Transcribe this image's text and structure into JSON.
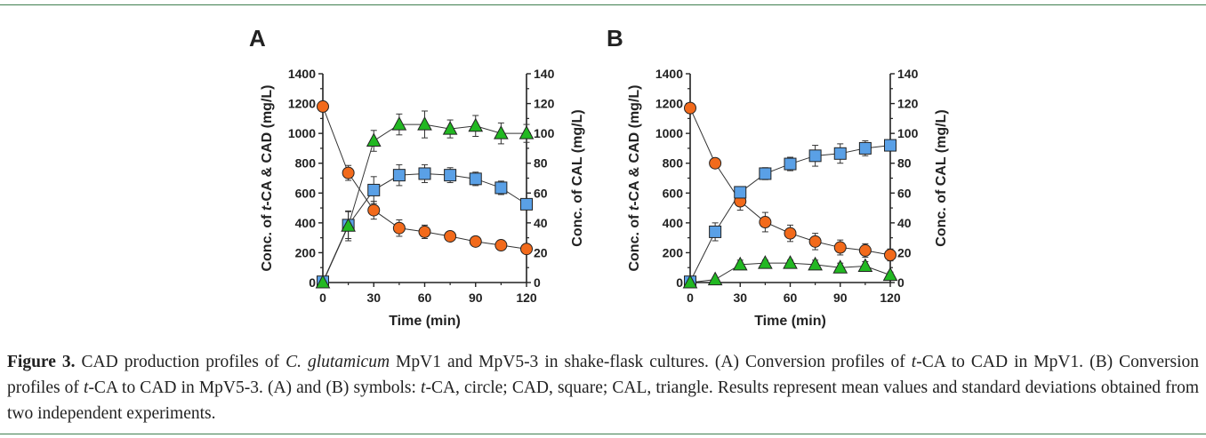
{
  "chart_data": [
    {
      "type": "line",
      "panel": "A",
      "xlabel": "Time (min)",
      "ylabel_parts": [
        "Conc. of ",
        "t",
        "-CA & CAD (mg/L)"
      ],
      "y2label": "Conc. of CAL (mg/L)",
      "xlim": [
        0,
        120
      ],
      "ylim": [
        0,
        1400
      ],
      "y2lim": [
        0,
        140
      ],
      "xticks": [
        "0",
        "30",
        "60",
        "90",
        "120"
      ],
      "yticks": [
        "0",
        "200",
        "400",
        "600",
        "800",
        "1000",
        "1200",
        "1400"
      ],
      "y2ticks": [
        "0",
        "20",
        "40",
        "60",
        "80",
        "100",
        "120",
        "140"
      ],
      "series": [
        {
          "marker": "circle",
          "axis": "left",
          "color": "#f26a1b",
          "x": [
            0,
            15,
            30,
            45,
            60,
            75,
            90,
            105,
            120
          ],
          "y": [
            1180,
            735,
            485,
            365,
            340,
            310,
            275,
            250,
            225
          ],
          "err": [
            0,
            50,
            60,
            55,
            45,
            25,
            20,
            20,
            20
          ]
        },
        {
          "marker": "square",
          "axis": "left",
          "color": "#5aa0e6",
          "x": [
            0,
            15,
            30,
            45,
            60,
            75,
            90,
            105,
            120
          ],
          "y": [
            5,
            385,
            620,
            720,
            730,
            720,
            695,
            635,
            525
          ],
          "err": [
            0,
            90,
            90,
            70,
            60,
            50,
            45,
            45,
            30
          ]
        },
        {
          "marker": "triangle",
          "axis": "right",
          "color": "#22b822",
          "x": [
            0,
            15,
            30,
            45,
            60,
            75,
            90,
            105,
            120
          ],
          "y": [
            0,
            38,
            95,
            106,
            106,
            103,
            105,
            100,
            100
          ],
          "err": [
            0,
            10,
            7,
            7,
            9,
            6,
            7,
            7,
            6
          ]
        }
      ]
    },
    {
      "type": "line",
      "panel": "B",
      "xlabel": "Time (min)",
      "ylabel_parts": [
        "Conc. of ",
        "t",
        "-CA & CAD (mg/L)"
      ],
      "y2label": "Conc. of CAL (mg/L)",
      "xlim": [
        0,
        120
      ],
      "ylim": [
        0,
        1400
      ],
      "y2lim": [
        0,
        140
      ],
      "xticks": [
        "0",
        "30",
        "60",
        "90",
        "120"
      ],
      "yticks": [
        "0",
        "200",
        "400",
        "600",
        "800",
        "1000",
        "1200",
        "1400"
      ],
      "y2ticks": [
        "0",
        "20",
        "40",
        "60",
        "80",
        "100",
        "120",
        "140"
      ],
      "series": [
        {
          "marker": "circle",
          "axis": "left",
          "color": "#f26a1b",
          "x": [
            0,
            15,
            30,
            45,
            60,
            75,
            90,
            105,
            120
          ],
          "y": [
            1170,
            800,
            545,
            405,
            330,
            275,
            235,
            215,
            185
          ],
          "err": [
            0,
            0,
            60,
            65,
            55,
            55,
            50,
            45,
            40
          ]
        },
        {
          "marker": "square",
          "axis": "left",
          "color": "#5aa0e6",
          "x": [
            0,
            15,
            30,
            45,
            60,
            75,
            90,
            105,
            120
          ],
          "y": [
            5,
            340,
            605,
            730,
            795,
            850,
            865,
            900,
            920
          ],
          "err": [
            0,
            60,
            30,
            40,
            45,
            70,
            65,
            50,
            25
          ]
        },
        {
          "marker": "triangle",
          "axis": "right",
          "color": "#22b822",
          "x": [
            0,
            15,
            30,
            45,
            60,
            75,
            90,
            105,
            120
          ],
          "y": [
            0,
            2,
            12,
            13,
            13,
            12,
            10,
            11,
            5
          ],
          "err": [
            0,
            0,
            3,
            2,
            2,
            3,
            3,
            3,
            2
          ]
        }
      ]
    }
  ],
  "caption": {
    "label": "Figure 3.",
    "parts": [
      {
        "t": " CAD production profiles of ",
        "i": false
      },
      {
        "t": "C. glutamicum",
        "i": true
      },
      {
        "t": " MpV1 and MpV5-3 in shake-flask cultures. (A) Conversion profiles of ",
        "i": false
      },
      {
        "t": "t",
        "i": true
      },
      {
        "t": "-CA to CAD in MpV1. (B) Conversion profiles of ",
        "i": false
      },
      {
        "t": "t",
        "i": true
      },
      {
        "t": "-CA to CAD in MpV5-3. (A) and (B) symbols: ",
        "i": false
      },
      {
        "t": "t",
        "i": true
      },
      {
        "t": "-CA, circle; CAD, square; CAL, triangle. Results represent mean values and standard deviations obtained from two independent experiments.",
        "i": false
      }
    ]
  }
}
